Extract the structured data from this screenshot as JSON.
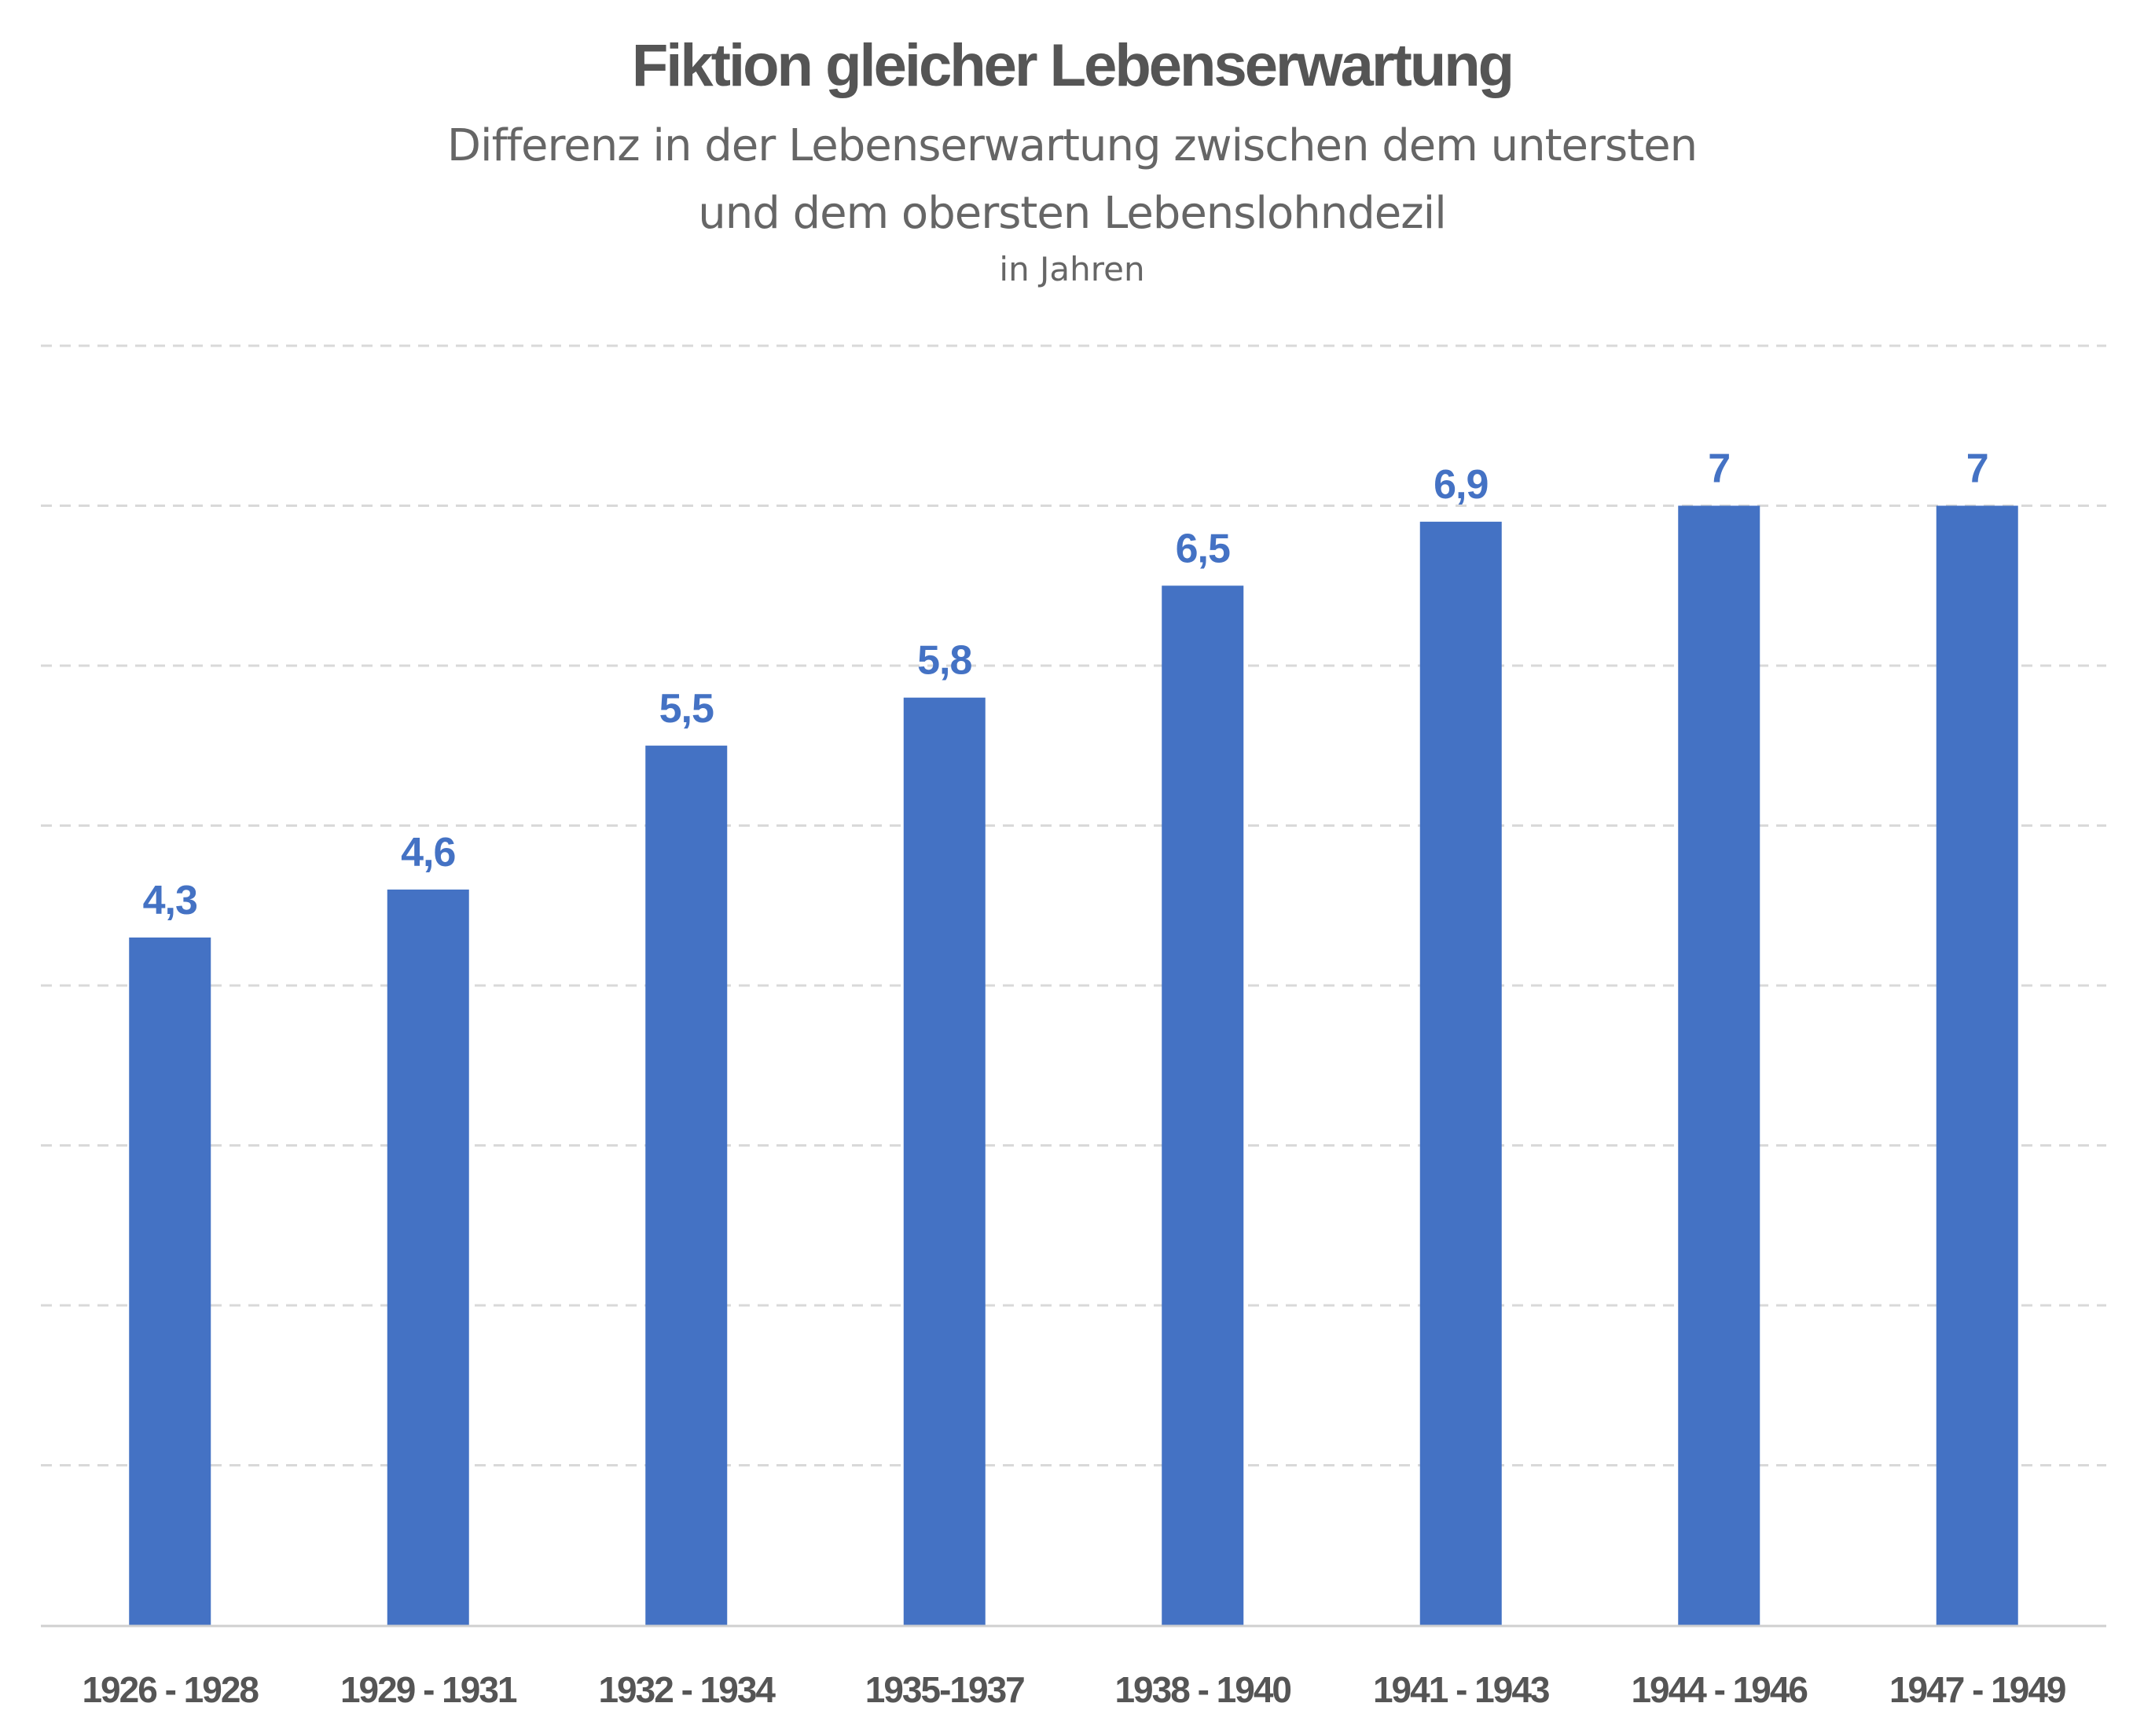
{
  "header": {
    "title": "Fiktion gleicher Lebenserwartung",
    "subtitle_line1": "Differenz in der Lebenserwartung zwischen dem untersten",
    "subtitle_line2": "und dem obersten Lebenslohndezil",
    "unit": "in Jahren"
  },
  "colors": {
    "bar": "#4472C4",
    "label": "#4472C4",
    "axis_text": "#555555",
    "grid": "#D9D9D9"
  },
  "chart_data": {
    "type": "bar",
    "title": "Fiktion gleicher Lebenserwartung",
    "subtitle": "Differenz in der Lebenserwartung zwischen dem untersten und dem obersten Lebenslohndezil",
    "ylabel": "in Jahren",
    "categories": [
      "1926 - 1928",
      "1929 - 1931",
      "1932 - 1934",
      "1935-1937",
      "1938 - 1940",
      "1941 - 1943",
      "1944 - 1946",
      "1947 - 1949"
    ],
    "values": [
      4.3,
      4.6,
      5.5,
      5.8,
      6.5,
      6.9,
      7,
      7
    ],
    "value_labels": [
      "4,3",
      "4,6",
      "5,5",
      "5,8",
      "6,5",
      "6,9",
      "7",
      "7"
    ],
    "ylim": [
      0,
      8
    ],
    "grid": true,
    "grid_style": "dashed",
    "legend": "none"
  }
}
